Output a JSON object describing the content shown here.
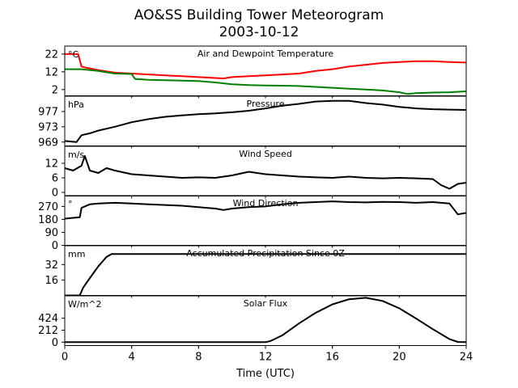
{
  "title": "AO&SS Building Tower Meteorogram",
  "subtitle": "2003-10-12",
  "chart_data": {
    "type": "line",
    "xlabel": "Time (UTC)",
    "xlim": [
      0,
      24
    ],
    "xticks": [
      0,
      4,
      8,
      12,
      16,
      20,
      24
    ],
    "panels": [
      {
        "title": "Air and Dewpoint Temperature",
        "unit": "°C",
        "ylim": [
          -1.5,
          26.5
        ],
        "yticks": [
          2,
          12,
          22
        ],
        "series": [
          {
            "color": "#ff0000",
            "x": [
              0,
              0.8,
              1,
              1.2,
              2,
              3,
              4,
              5,
              6,
              7,
              8,
              8.5,
              9,
              9.5,
              10,
              11,
              12,
              13,
              14,
              15,
              16,
              17,
              18,
              19,
              20,
              21,
              22,
              23,
              24
            ],
            "y": [
              22,
              22,
              15,
              14.5,
              13,
              11.5,
              11,
              10.5,
              10,
              9.5,
              9,
              8.8,
              8.5,
              8.3,
              9,
              9.5,
              10,
              10.5,
              11,
              12.5,
              13.5,
              15,
              16,
              17,
              17.5,
              18,
              18,
              17.5,
              17.2
            ]
          },
          {
            "color": "#008000",
            "x": [
              0,
              1,
              2,
              3,
              4,
              4.2,
              5,
              6,
              7,
              8,
              9,
              10,
              11,
              12,
              13,
              14,
              15,
              16,
              17,
              18,
              19,
              19.5,
              20,
              20.5,
              21,
              22,
              23,
              24
            ],
            "y": [
              13.5,
              13.5,
              12.5,
              11,
              10.8,
              8,
              7.5,
              7.3,
              7,
              6.8,
              6,
              5,
              4.5,
              4.3,
              4.2,
              4,
              3.5,
              3,
              2.5,
              2,
              1.5,
              1,
              0.5,
              -0.5,
              0,
              0.3,
              0.5,
              1
            ]
          }
        ]
      },
      {
        "title": "Pressure",
        "unit": "hPa",
        "ylim": [
          968,
          981
        ],
        "yticks": [
          969,
          973,
          977
        ],
        "series": [
          {
            "color": "#000000",
            "x": [
              0,
              0.7,
              1,
              1.5,
              2,
              3,
              4,
              5,
              6,
              7,
              8,
              9,
              10,
              11,
              12,
              13,
              14,
              15,
              16,
              17,
              18,
              19,
              20,
              21,
              22,
              23,
              24
            ],
            "y": [
              969.3,
              969,
              970.8,
              971.3,
              972,
              973,
              974.2,
              975,
              975.6,
              976,
              976.3,
              976.5,
              976.8,
              977.2,
              977.8,
              978.5,
              979,
              979.6,
              979.8,
              979.8,
              979.2,
              978.8,
              978.2,
              977.8,
              977.6,
              977.5,
              977.4
            ]
          }
        ]
      },
      {
        "title": "Wind Speed",
        "unit": "m/s",
        "ylim": [
          -1.5,
          19
        ],
        "yticks": [
          0,
          6,
          12
        ],
        "series": [
          {
            "color": "#000000",
            "x": [
              0,
              0.5,
              1,
              1.2,
              1.5,
              2,
              2.5,
              3,
              4,
              5,
              6,
              7,
              8,
              9,
              10,
              11,
              12,
              13,
              14,
              15,
              16,
              17,
              18,
              19,
              20,
              21,
              22,
              22.5,
              23,
              23.5,
              24
            ],
            "y": [
              10,
              9,
              11,
              15,
              9,
              8,
              10,
              9,
              7.5,
              7,
              6.5,
              6,
              6.2,
              6,
              7,
              8.5,
              7.5,
              7,
              6.5,
              6.2,
              6,
              6.5,
              6,
              5.8,
              6,
              5.8,
              5.5,
              3,
              1.5,
              3.5,
              4
            ]
          }
        ]
      },
      {
        "title": "Wind Direction",
        "unit": "°",
        "ylim": [
          0,
          345
        ],
        "yticks": [
          0,
          90,
          180,
          270
        ],
        "series": [
          {
            "color": "#000000",
            "x": [
              0,
              0.9,
              1,
              1.5,
              2,
              3,
              4,
              5,
              6,
              7,
              8,
              9,
              9.5,
              10,
              11,
              12,
              13,
              14,
              15,
              16,
              17,
              18,
              19,
              20,
              21,
              22,
              23,
              23.5,
              24
            ],
            "y": [
              185,
              195,
              260,
              285,
              290,
              295,
              290,
              285,
              280,
              275,
              265,
              255,
              245,
              255,
              265,
              270,
              285,
              295,
              300,
              305,
              300,
              298,
              302,
              300,
              295,
              300,
              290,
              215,
              225
            ]
          }
        ]
      },
      {
        "title": "Accumulated Precipitation Since 0Z",
        "unit": "mm",
        "ylim": [
          0,
          51.5
        ],
        "yticks": [
          16,
          32
        ],
        "series": [
          {
            "color": "#000000",
            "x": [
              0,
              0.9,
              1.1,
              1.5,
              2,
              2.5,
              2.8,
              3,
              24
            ],
            "y": [
              0,
              0,
              8,
              18,
              30,
              40,
              43,
              43,
              43
            ]
          }
        ]
      },
      {
        "title": "Solar Flux",
        "unit": "W/m^2",
        "ylim": [
          -60,
          820
        ],
        "yticks": [
          0,
          212,
          424
        ],
        "series": [
          {
            "color": "#000000",
            "x": [
              0,
              12,
              12.3,
              13,
              14,
              15,
              16,
              17,
              18,
              19,
              20,
              21,
              22,
              23,
              23.5,
              24
            ],
            "y": [
              0,
              0,
              20,
              120,
              330,
              520,
              670,
              760,
              785,
              730,
              600,
              420,
              230,
              55,
              5,
              0
            ]
          }
        ]
      }
    ]
  }
}
